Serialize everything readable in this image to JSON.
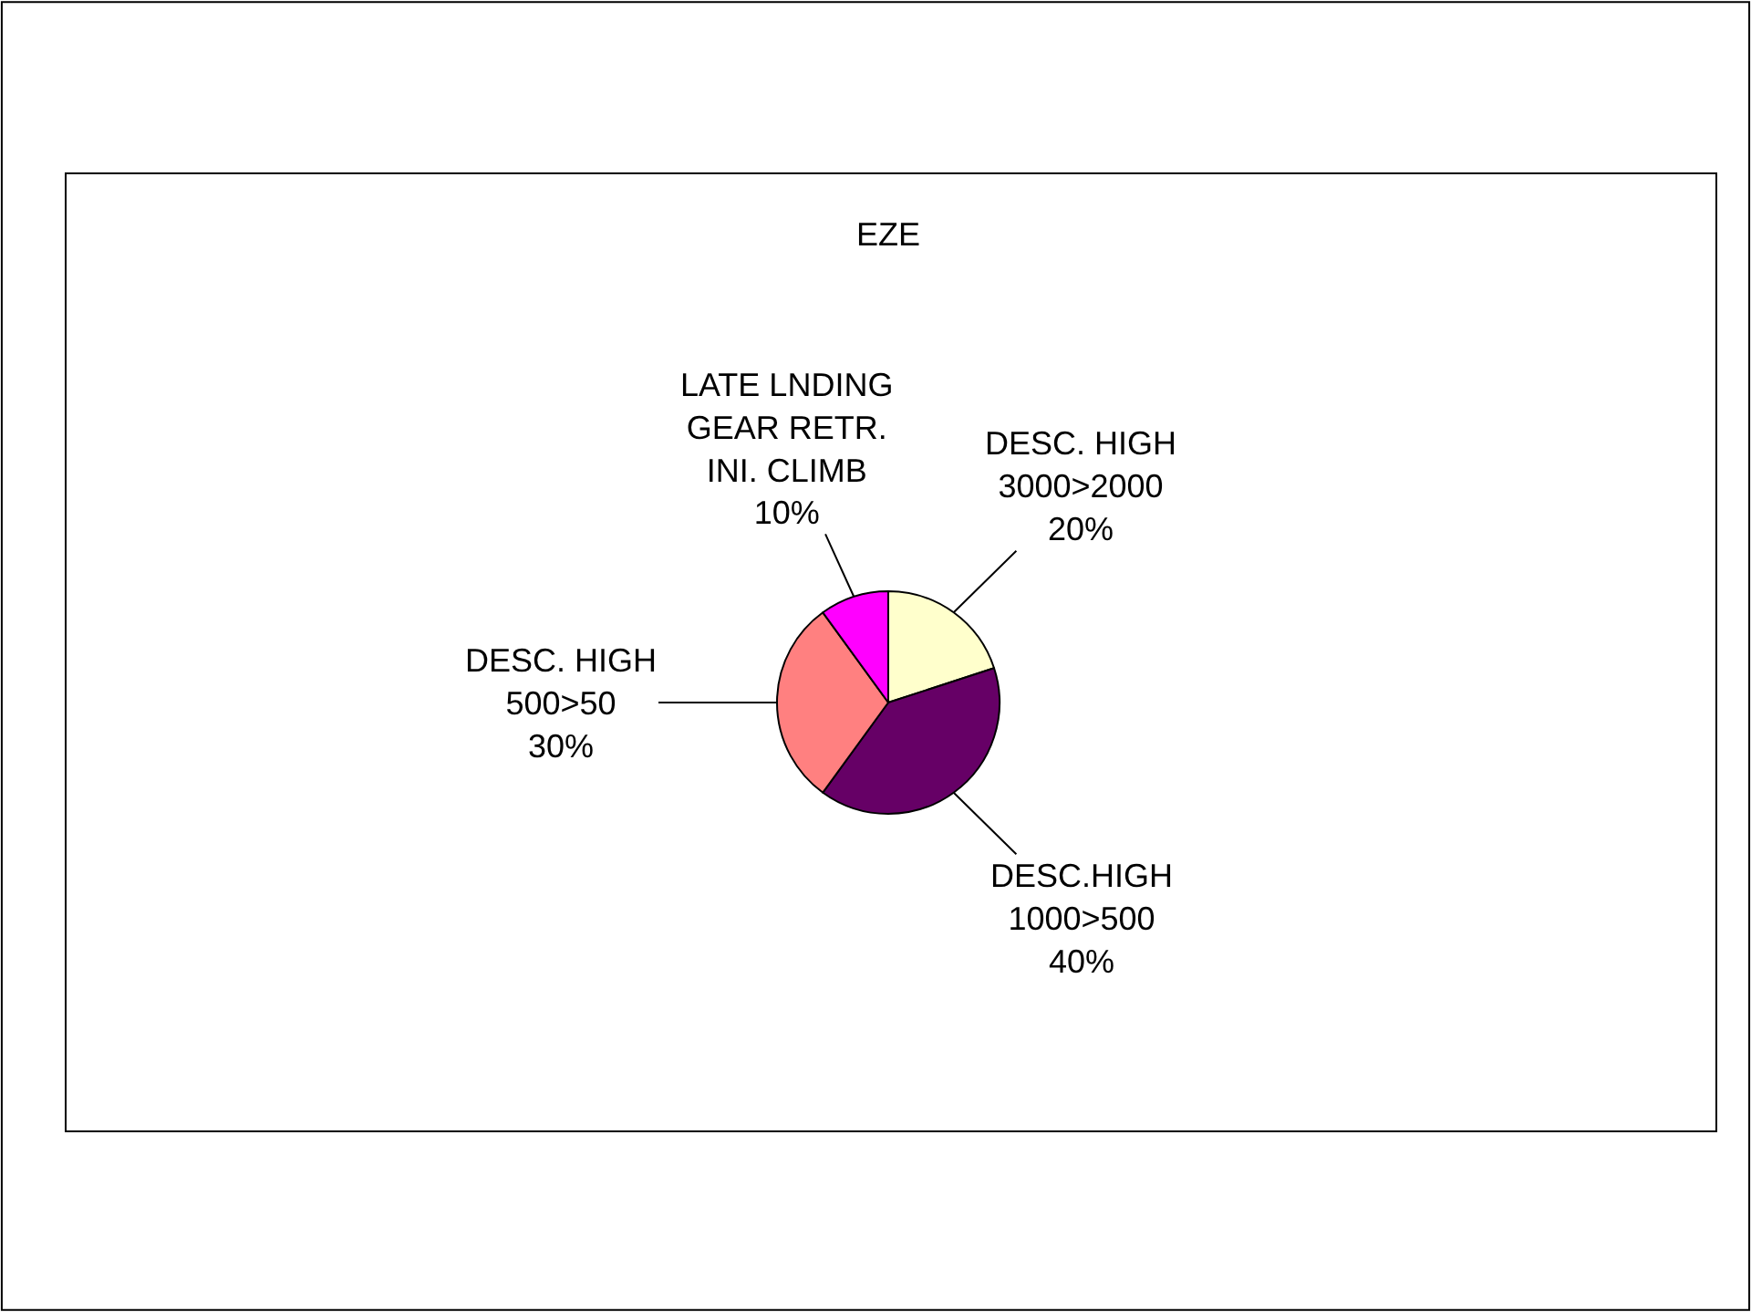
{
  "chart_data": {
    "type": "pie",
    "title": "EZE",
    "categories": [
      "DESC. HIGH\n3000>2000",
      "DESC.HIGH\n1000>500",
      "DESC. HIGH\n500>50",
      "LATE LNDING\nGEAR RETR.\nINI. CLIMB"
    ],
    "values": [
      20,
      40,
      30,
      10
    ],
    "value_labels": [
      "20%",
      "40%",
      "30%",
      "10%"
    ],
    "colors": [
      "#ffffcc",
      "#660066",
      "#ff8080",
      "#ff00ff"
    ],
    "legend": false
  }
}
